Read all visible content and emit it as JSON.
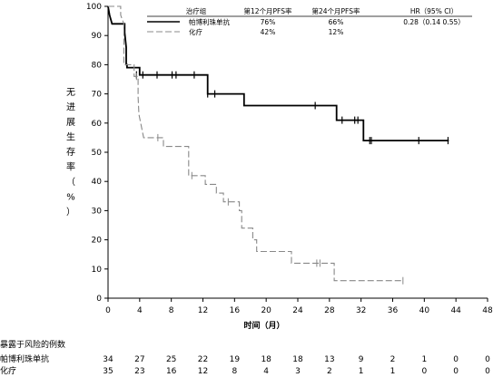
{
  "chart_data": {
    "type": "line",
    "xlabel": "时间（月）",
    "ylabel": "无进展生存率（%）",
    "xlim": [
      0,
      48
    ],
    "ylim": [
      0,
      100
    ],
    "xticks": [
      0,
      4,
      8,
      12,
      16,
      20,
      24,
      28,
      32,
      36,
      40,
      44,
      48
    ],
    "yticks": [
      0,
      10,
      20,
      30,
      40,
      50,
      60,
      70,
      80,
      90,
      100
    ],
    "grid": false,
    "legend": {
      "placement": "top-right",
      "header": [
        "治疗组",
        "第12个月PFS率",
        "第24个月PFS率",
        "HR（95% CI）"
      ],
      "rows": [
        {
          "name": "帕博利珠单抗",
          "pfs12": "76%",
          "pfs24": "66%",
          "hr": "0.28（0.14  0.55）"
        },
        {
          "name": "化疗",
          "pfs12": "42%",
          "pfs24": "12%",
          "hr": ""
        }
      ]
    },
    "series": [
      {
        "name": "帕博利珠单抗",
        "color": "#000000",
        "style": "solid",
        "steps": [
          [
            0,
            100
          ],
          [
            0.2,
            97
          ],
          [
            0.5,
            94
          ],
          [
            2.1,
            94
          ],
          [
            2.1,
            91
          ],
          [
            2.3,
            86
          ],
          [
            2.3,
            80
          ],
          [
            2.4,
            80
          ],
          [
            2.4,
            79
          ],
          [
            4.0,
            79
          ],
          [
            4.0,
            76.5
          ],
          [
            12.6,
            76.5
          ],
          [
            12.6,
            70
          ],
          [
            17.2,
            70
          ],
          [
            17.2,
            66
          ],
          [
            28.9,
            66
          ],
          [
            28.9,
            61
          ],
          [
            32.3,
            61
          ],
          [
            32.3,
            54
          ],
          [
            43.1,
            54
          ]
        ],
        "censored": [
          [
            3.6,
            76.5
          ],
          [
            4.4,
            76.5
          ],
          [
            6.2,
            76.5
          ],
          [
            8.1,
            76.5
          ],
          [
            8.6,
            76.5
          ],
          [
            10.9,
            76.5
          ],
          [
            12.6,
            70
          ],
          [
            13.5,
            70
          ],
          [
            26.2,
            66
          ],
          [
            29.6,
            61
          ],
          [
            31.2,
            61
          ],
          [
            31.6,
            61
          ],
          [
            33.1,
            54
          ],
          [
            33.3,
            54
          ],
          [
            39.3,
            54
          ],
          [
            43.0,
            54
          ]
        ]
      },
      {
        "name": "化疗",
        "color": "#888888",
        "style": "dashed",
        "steps": [
          [
            0,
            100
          ],
          [
            1.6,
            100
          ],
          [
            1.6,
            97
          ],
          [
            2.0,
            94
          ],
          [
            2.0,
            80
          ],
          [
            3.3,
            80
          ],
          [
            3.3,
            76
          ],
          [
            3.8,
            76
          ],
          [
            3.8,
            69
          ],
          [
            3.9,
            63
          ],
          [
            4.2,
            59
          ],
          [
            4.5,
            55
          ],
          [
            7.0,
            55
          ],
          [
            7.0,
            52
          ],
          [
            10.2,
            52
          ],
          [
            10.2,
            42
          ],
          [
            12.3,
            42
          ],
          [
            12.3,
            39
          ],
          [
            13.7,
            39
          ],
          [
            13.7,
            36
          ],
          [
            14.6,
            36
          ],
          [
            14.6,
            33
          ],
          [
            16.6,
            33
          ],
          [
            16.6,
            30
          ],
          [
            16.9,
            30
          ],
          [
            16.9,
            24
          ],
          [
            18.3,
            24
          ],
          [
            18.3,
            20
          ],
          [
            18.8,
            20
          ],
          [
            18.8,
            16
          ],
          [
            23.2,
            16
          ],
          [
            23.2,
            12
          ],
          [
            28.6,
            12
          ],
          [
            28.6,
            6
          ],
          [
            37.4,
            6
          ]
        ],
        "censored": [
          [
            3.6,
            76
          ],
          [
            6.3,
            55
          ],
          [
            10.6,
            42
          ],
          [
            15.2,
            33
          ],
          [
            26.4,
            12
          ],
          [
            26.8,
            12
          ],
          [
            37.3,
            6
          ]
        ]
      }
    ],
    "risk_table": {
      "title": "暴露于风险的例数",
      "times": [
        0,
        4,
        8,
        12,
        16,
        20,
        24,
        28,
        32,
        36,
        40,
        44,
        48
      ],
      "rows": [
        {
          "name": "帕博利珠单抗",
          "counts": [
            "34",
            "27",
            "25",
            "22",
            "19",
            "18",
            "18",
            "13",
            "9",
            "2",
            "1",
            "0",
            "0"
          ]
        },
        {
          "name": "化疗",
          "counts": [
            "35",
            "23",
            "16",
            "12",
            "8",
            "4",
            "3",
            "2",
            "1",
            "1",
            "0",
            "0",
            "0"
          ]
        }
      ]
    }
  }
}
